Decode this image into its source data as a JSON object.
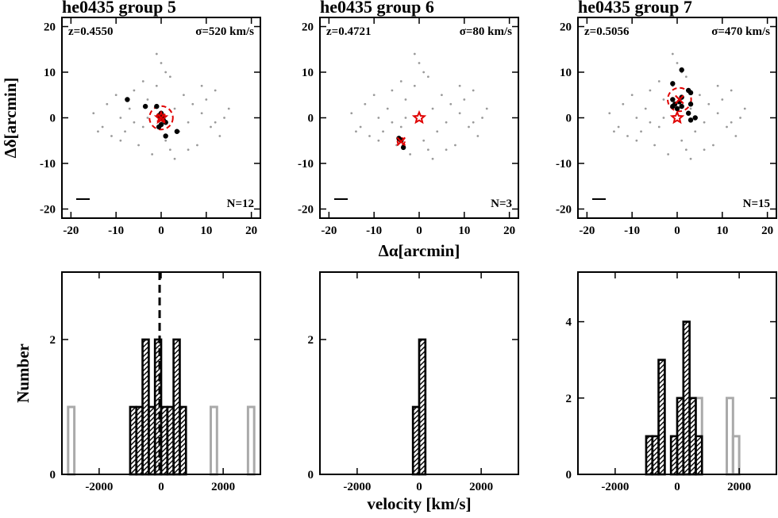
{
  "chart_data": [
    {
      "type": "scatter",
      "title": "he0435 group 5",
      "redshift_label": "z=0.4550",
      "sigma_label": "σ=520 km/s",
      "n_label": "N=12",
      "ylabel": "Δδ[arcmin]",
      "xlim": [
        -22,
        22
      ],
      "ylim": [
        -22,
        22
      ],
      "xticks": [
        -20,
        -10,
        0,
        10,
        20
      ],
      "yticks": [
        -20,
        -10,
        0,
        10,
        20
      ],
      "field": {
        "color": "#9a9a9a",
        "x": [
          -15,
          -13,
          -12,
          -11,
          -10,
          -9,
          -8,
          -7,
          -6,
          -5,
          -4,
          -3,
          -2,
          -1,
          1,
          2,
          3,
          4,
          5,
          6,
          7,
          8,
          9,
          10,
          11,
          12,
          13,
          14,
          15,
          -14,
          -9,
          -6,
          -3,
          0,
          3,
          6,
          9,
          12,
          -1,
          1,
          2,
          -4
        ],
        "y": [
          1,
          -2,
          3,
          -4,
          5,
          0,
          -3,
          2,
          6,
          -6,
          -2,
          4,
          -8,
          7,
          -5,
          9,
          2,
          -3,
          5,
          -1,
          3,
          -6,
          1,
          4,
          -2,
          6,
          -4,
          0,
          2,
          -3,
          -5,
          -1,
          0,
          12,
          -9,
          -7,
          7,
          -1,
          14,
          10,
          -7,
          8
        ]
      },
      "members": {
        "color": "#000000",
        "x": [
          -7.5,
          -3.5,
          -1,
          0,
          0.5,
          0,
          -0.5,
          1,
          3.5,
          1,
          0.3,
          -0.5
        ],
        "y": [
          4,
          2.5,
          2.5,
          1,
          -0.5,
          -1.5,
          -2,
          -1,
          -3,
          -4,
          0,
          0.5
        ]
      },
      "center": {
        "color": "#e00000",
        "x": 0,
        "y": 0
      },
      "centroid": {
        "color": "#e00000",
        "x": 0,
        "y": 0
      },
      "circle_radius": 2.6
    },
    {
      "type": "scatter",
      "title": "he0435 group 6",
      "redshift_label": "z=0.4721",
      "sigma_label": "σ=80 km/s",
      "n_label": "N=3",
      "xlabel": "Δα[arcmin]",
      "xlim": [
        -22,
        22
      ],
      "ylim": [
        -22,
        22
      ],
      "xticks": [
        -20,
        -10,
        0,
        10,
        20
      ],
      "yticks": [
        -20,
        -10,
        0,
        10,
        20
      ],
      "field": {
        "color": "#9a9a9a",
        "x": [
          -15,
          -13,
          -12,
          -11,
          -10,
          -9,
          -8,
          -7,
          -6,
          -5,
          -4,
          -3,
          -2,
          -1,
          1,
          2,
          3,
          4,
          5,
          6,
          7,
          8,
          9,
          10,
          11,
          12,
          13,
          14,
          15,
          -14,
          -9,
          -6,
          -3,
          0,
          3,
          6,
          9,
          12,
          -1,
          1,
          2,
          -4
        ],
        "y": [
          1,
          -2,
          3,
          -4,
          5,
          0,
          -3,
          2,
          6,
          -6,
          -2,
          4,
          -8,
          7,
          -5,
          9,
          2,
          -3,
          5,
          -1,
          3,
          -6,
          1,
          4,
          -2,
          6,
          -4,
          0,
          2,
          -3,
          -5,
          -1,
          0,
          12,
          -9,
          -7,
          7,
          -1,
          14,
          10,
          -7,
          8
        ]
      },
      "members": {
        "color": "#000000",
        "x": [
          -4.5,
          -3.5,
          -4
        ],
        "y": [
          -4.5,
          -6.5,
          -5
        ]
      },
      "center": {
        "color": "#e00000",
        "x": 0,
        "y": 0
      },
      "centroid": {
        "color": "#e00000",
        "x": -4,
        "y": -5.2
      },
      "circle_radius": 0.8
    },
    {
      "type": "scatter",
      "title": "he0435 group 7",
      "redshift_label": "z=0.5056",
      "sigma_label": "σ=470 km/s",
      "n_label": "N=15",
      "xlim": [
        -22,
        22
      ],
      "ylim": [
        -22,
        22
      ],
      "xticks": [
        -20,
        -10,
        0,
        10,
        20
      ],
      "yticks": [
        -20,
        -10,
        0,
        10,
        20
      ],
      "field": {
        "color": "#9a9a9a",
        "x": [
          -15,
          -13,
          -12,
          -11,
          -10,
          -9,
          -8,
          -7,
          -6,
          -5,
          -4,
          -3,
          -2,
          -1,
          1,
          2,
          3,
          4,
          5,
          6,
          7,
          8,
          9,
          10,
          11,
          12,
          13,
          14,
          15,
          -14,
          -9,
          -6,
          -3,
          0,
          3,
          6,
          9,
          12,
          -1,
          1,
          2,
          -4
        ],
        "y": [
          1,
          -2,
          3,
          -4,
          5,
          0,
          -3,
          2,
          6,
          -6,
          -2,
          4,
          -8,
          7,
          -5,
          9,
          2,
          -3,
          5,
          -1,
          3,
          -6,
          1,
          4,
          -2,
          6,
          -4,
          0,
          2,
          -3,
          -5,
          -1,
          0,
          12,
          -9,
          -7,
          7,
          -1,
          14,
          10,
          -7,
          8
        ]
      },
      "members": {
        "color": "#000000",
        "x": [
          1,
          -1,
          2.5,
          3,
          -1,
          1,
          -1,
          0,
          1,
          3,
          2.5,
          4,
          3,
          -0.5,
          0.5
        ],
        "y": [
          10.5,
          7.5,
          6,
          5.5,
          4,
          4.5,
          2.5,
          2,
          2.5,
          3,
          1,
          0,
          -0.5,
          3,
          3.5
        ]
      },
      "center": {
        "color": "#e00000",
        "x": 0,
        "y": 0
      },
      "centroid": {
        "color": "#e00000",
        "x": 0.5,
        "y": 4
      },
      "circle_radius": 2.6
    },
    {
      "type": "histogram",
      "ylabel": "Number",
      "xlim": [
        -3200,
        3200
      ],
      "ylim": [
        0,
        3
      ],
      "xticks": [
        -2000,
        0,
        2000
      ],
      "yticks": [
        0,
        2
      ],
      "bins": [
        -3000,
        -2800,
        -2600,
        -2400,
        -2200,
        -2000,
        -1800,
        -1600,
        -1400,
        -1200,
        -1000,
        -800,
        -600,
        -400,
        -200,
        0,
        200,
        400,
        600,
        800,
        1000,
        1200,
        1400,
        1600,
        1800,
        2000,
        2200,
        2400,
        2600,
        2800,
        3000
      ],
      "field": {
        "color": "#aaaaaa",
        "values": [
          1,
          0,
          0,
          0,
          0,
          0,
          0,
          0,
          0,
          0,
          1,
          1,
          2,
          1,
          2,
          1,
          1,
          2,
          1,
          0,
          0,
          0,
          0,
          1,
          0,
          0,
          0,
          0,
          0,
          1
        ]
      },
      "members": {
        "color": "#000000",
        "values": [
          0,
          0,
          0,
          0,
          0,
          0,
          0,
          0,
          0,
          0,
          1,
          1,
          2,
          1,
          2,
          1,
          1,
          2,
          1,
          0,
          0,
          0,
          0,
          0,
          0,
          0,
          0,
          0,
          0,
          0
        ]
      },
      "vline": -50
    },
    {
      "type": "histogram",
      "xlabel": "velocity [km/s]",
      "xlim": [
        -3200,
        3200
      ],
      "ylim": [
        0,
        3
      ],
      "xticks": [
        -2000,
        0,
        2000
      ],
      "yticks": [
        0,
        2
      ],
      "bins": [
        -3000,
        -2800,
        -2600,
        -2400,
        -2200,
        -2000,
        -1800,
        -1600,
        -1400,
        -1200,
        -1000,
        -800,
        -600,
        -400,
        -200,
        0,
        200,
        400,
        600,
        800,
        1000,
        1200,
        1400,
        1600,
        1800,
        2000,
        2200,
        2400,
        2600,
        2800,
        3000
      ],
      "field": {
        "color": "#aaaaaa",
        "values": [
          0,
          0,
          0,
          0,
          0,
          0,
          0,
          0,
          0,
          0,
          0,
          0,
          0,
          0,
          1,
          2,
          0,
          0,
          0,
          0,
          0,
          0,
          0,
          0,
          0,
          0,
          0,
          0,
          0,
          0
        ]
      },
      "members": {
        "color": "#000000",
        "values": [
          0,
          0,
          0,
          0,
          0,
          0,
          0,
          0,
          0,
          0,
          0,
          0,
          0,
          0,
          1,
          2,
          0,
          0,
          0,
          0,
          0,
          0,
          0,
          0,
          0,
          0,
          0,
          0,
          0,
          0
        ]
      }
    },
    {
      "type": "histogram",
      "xlim": [
        -3200,
        3200
      ],
      "ylim": [
        0,
        5.3
      ],
      "xticks": [
        -2000,
        0,
        2000
      ],
      "yticks": [
        0,
        2,
        4
      ],
      "bins": [
        -3000,
        -2800,
        -2600,
        -2400,
        -2200,
        -2000,
        -1800,
        -1600,
        -1400,
        -1200,
        -1000,
        -800,
        -600,
        -400,
        -200,
        0,
        200,
        400,
        600,
        800,
        1000,
        1200,
        1400,
        1600,
        1800,
        2000,
        2200,
        2400,
        2600,
        2800,
        3000
      ],
      "field": {
        "color": "#aaaaaa",
        "values": [
          0,
          0,
          0,
          0,
          0,
          0,
          0,
          0,
          0,
          0,
          1,
          1,
          3,
          0,
          1,
          2,
          4,
          2,
          2,
          0,
          0,
          0,
          0,
          2,
          1,
          0,
          0,
          0,
          0,
          0
        ]
      },
      "members": {
        "color": "#000000",
        "values": [
          0,
          0,
          0,
          0,
          0,
          0,
          0,
          0,
          0,
          0,
          1,
          1,
          3,
          0,
          1,
          2,
          4,
          2,
          1,
          0,
          0,
          0,
          0,
          0,
          0,
          0,
          0,
          0,
          0,
          0
        ]
      }
    }
  ]
}
